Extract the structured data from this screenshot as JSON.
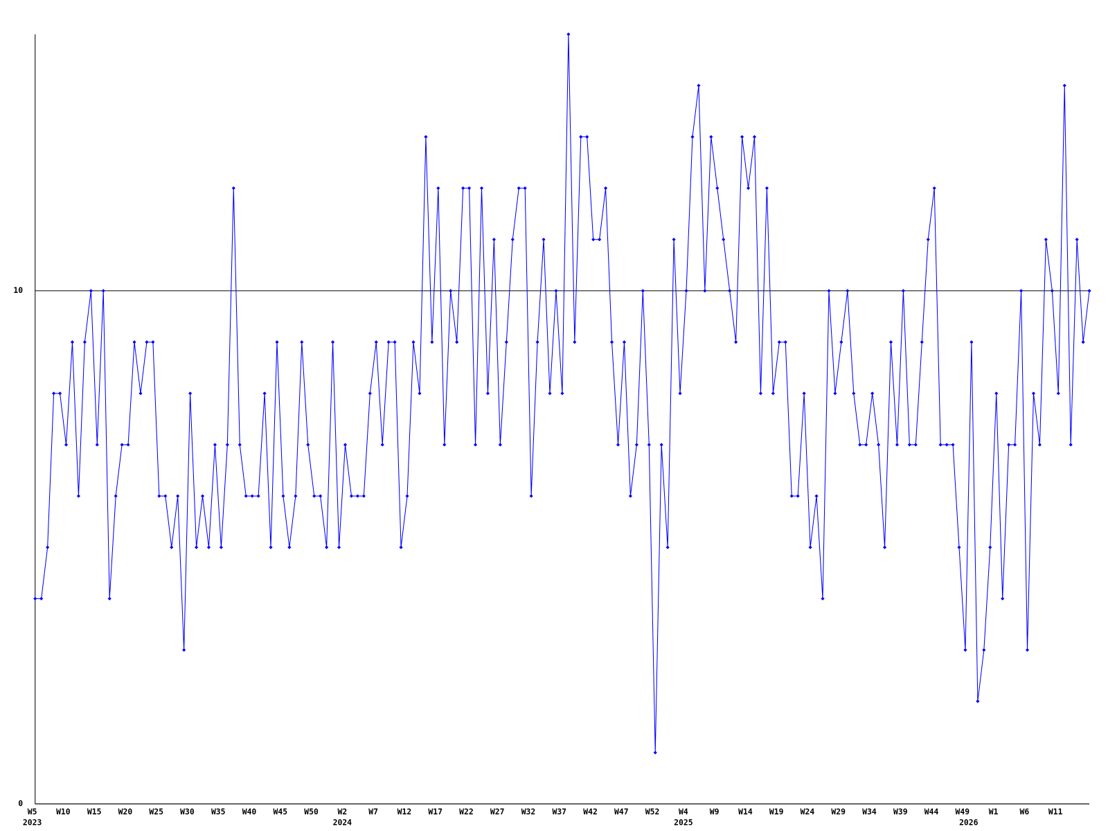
{
  "chart_data": {
    "type": "line",
    "values": [
      4,
      4,
      5,
      8,
      8,
      7,
      9,
      6,
      9,
      10,
      7,
      10,
      4,
      6,
      7,
      7,
      9,
      8,
      9,
      9,
      6,
      6,
      5,
      6,
      3,
      8,
      5,
      6,
      5,
      7,
      5,
      7,
      12,
      7,
      6,
      6,
      6,
      8,
      5,
      9,
      6,
      5,
      6,
      9,
      7,
      6,
      6,
      5,
      9,
      5,
      7,
      6,
      6,
      6,
      8,
      9,
      7,
      9,
      9,
      5,
      6,
      9,
      8,
      13,
      9,
      12,
      7,
      10,
      9,
      12,
      12,
      7,
      12,
      8,
      11,
      7,
      9,
      11,
      12,
      12,
      6,
      9,
      11,
      8,
      10,
      8,
      15,
      9,
      13,
      13,
      11,
      11,
      12,
      9,
      7,
      9,
      6,
      7,
      10,
      7,
      1,
      7,
      5,
      11,
      8,
      10,
      13,
      14,
      10,
      13,
      12,
      11,
      10,
      9,
      13,
      12,
      13,
      8,
      12,
      8,
      9,
      9,
      6,
      6,
      8,
      5,
      6,
      4,
      10,
      8,
      9,
      10,
      8,
      7,
      7,
      8,
      7,
      5,
      9,
      7,
      10,
      7,
      7,
      9,
      11,
      12,
      7,
      7,
      7,
      5,
      3,
      9,
      2,
      3,
      5,
      8,
      4,
      7,
      7,
      10,
      3,
      8,
      7,
      11,
      10,
      8,
      14,
      7,
      11,
      9,
      10
    ],
    "categories": [
      "W5",
      null,
      null,
      null,
      null,
      "W10",
      null,
      null,
      null,
      null,
      "W15",
      null,
      null,
      null,
      null,
      "W20",
      null,
      null,
      null,
      null,
      "W25",
      null,
      null,
      null,
      null,
      "W30",
      null,
      null,
      null,
      null,
      "W35",
      null,
      null,
      null,
      null,
      "W40",
      null,
      null,
      null,
      null,
      "W45",
      null,
      null,
      null,
      null,
      "W50",
      null,
      null,
      null,
      null,
      "W2",
      null,
      null,
      null,
      null,
      "W7",
      null,
      null,
      null,
      null,
      "W12",
      null,
      null,
      null,
      null,
      "W17",
      null,
      null,
      null,
      null,
      "W22",
      null,
      null,
      null,
      null,
      "W27",
      null,
      null,
      null,
      null,
      "W32",
      null,
      null,
      null,
      null,
      "W37",
      null,
      null,
      null,
      null,
      "W42",
      null,
      null,
      null,
      null,
      "W47",
      null,
      null,
      null,
      null,
      "W52",
      null,
      null,
      null,
      null,
      "W4",
      null,
      null,
      null,
      null,
      "W9",
      null,
      null,
      null,
      null,
      "W14",
      null,
      null,
      null,
      null,
      "W19",
      null,
      null,
      null,
      null,
      "W24",
      null,
      null,
      null,
      null,
      "W29",
      null,
      null,
      null,
      null,
      "W34",
      null,
      null,
      null,
      null,
      "W39",
      null,
      null,
      null,
      null,
      "W44",
      null,
      null,
      null,
      null,
      "W49",
      null,
      null,
      null,
      null,
      "W1",
      null,
      null,
      null,
      null,
      "W6",
      null,
      null,
      null,
      null,
      "W11",
      null,
      null,
      null,
      null,
      null
    ],
    "categories2": [
      "2023",
      null,
      null,
      null,
      null,
      null,
      null,
      null,
      null,
      null,
      null,
      null,
      null,
      null,
      null,
      null,
      null,
      null,
      null,
      null,
      null,
      null,
      null,
      null,
      null,
      null,
      null,
      null,
      null,
      null,
      null,
      null,
      null,
      null,
      null,
      null,
      null,
      null,
      null,
      null,
      null,
      null,
      null,
      null,
      null,
      null,
      null,
      null,
      null,
      null,
      "2024",
      null,
      null,
      null,
      null,
      null,
      null,
      null,
      null,
      null,
      null,
      null,
      null,
      null,
      null,
      null,
      null,
      null,
      null,
      null,
      null,
      null,
      null,
      null,
      null,
      null,
      null,
      null,
      null,
      null,
      null,
      null,
      null,
      null,
      null,
      null,
      null,
      null,
      null,
      null,
      null,
      null,
      null,
      null,
      null,
      null,
      null,
      null,
      null,
      null,
      null,
      null,
      null,
      null,
      null,
      "2025",
      null,
      null,
      null,
      null,
      null,
      null,
      null,
      null,
      null,
      null,
      null,
      null,
      null,
      null,
      null,
      null,
      null,
      null,
      null,
      null,
      null,
      null,
      null,
      null,
      null,
      null,
      null,
      null,
      null,
      null,
      null,
      null,
      null,
      null,
      null,
      null,
      null,
      null,
      null,
      null,
      null,
      null,
      null,
      null,
      null,
      "2026",
      null,
      null,
      null,
      null,
      null,
      null,
      null,
      null,
      null,
      null,
      null,
      null,
      null,
      null,
      null
    ],
    "color": "#0000ff",
    "ylim": [
      0,
      15
    ],
    "yticks": [
      0,
      10
    ],
    "grid": true
  }
}
